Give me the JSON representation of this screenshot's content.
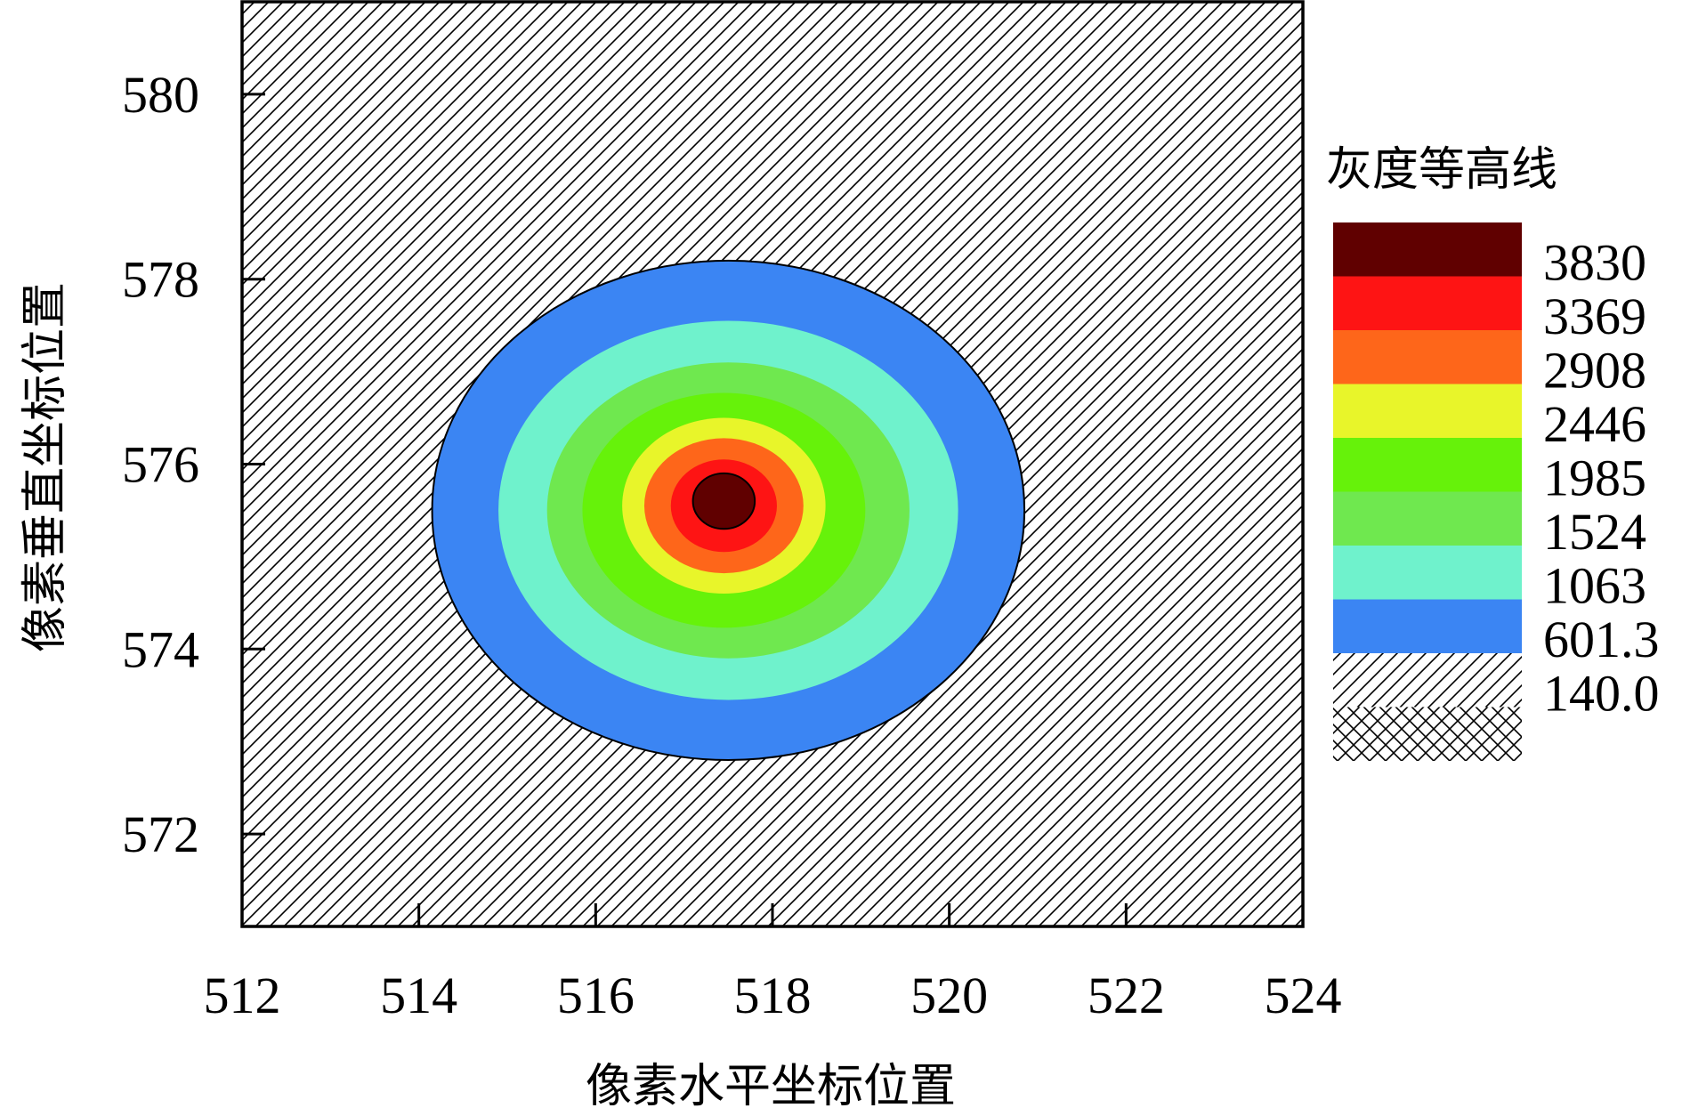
{
  "chart_data": {
    "type": "contour",
    "xlabel": "像素水平坐标位置",
    "ylabel": "像素垂直坐标位置",
    "xlim": [
      512,
      524
    ],
    "ylim": [
      571,
      581
    ],
    "x_ticks": [
      "512",
      "514",
      "516",
      "518",
      "520",
      "522",
      "524"
    ],
    "y_ticks": [
      "572",
      "574",
      "576",
      "578",
      "580"
    ],
    "grid": false,
    "legend_position": "right",
    "legend_title": "灰度等高线",
    "legend_labels": [
      "3830",
      "3369",
      "2908",
      "2446",
      "1985",
      "1524",
      "1063",
      "601.3",
      "140.0"
    ],
    "levels": [
      {
        "min": 140.0,
        "max": 601.3,
        "fill": "hatch-diagonal"
      },
      {
        "min": 601.3,
        "max": 1063,
        "color": "#3b85f3"
      },
      {
        "min": 1063,
        "max": 1524,
        "color": "#6ff2cc"
      },
      {
        "min": 1524,
        "max": 1985,
        "color": "#6fe84f"
      },
      {
        "min": 1985,
        "max": 2446,
        "color": "#66f20a"
      },
      {
        "min": 2446,
        "max": 2908,
        "color": "#e8f52a"
      },
      {
        "min": 2908,
        "max": 3369,
        "color": "#fe661a"
      },
      {
        "min": 3369,
        "max": 3830,
        "color": "#fe1414"
      },
      {
        "min": 3830,
        "max": null,
        "color": "#600000"
      }
    ],
    "legend_extra_swatch": {
      "label": "140.0",
      "fill": "hatch-cross"
    },
    "peak": {
      "x": 517.4,
      "y": 575.6
    },
    "contours": [
      {
        "cx": 517.5,
        "cy": 575.5,
        "rx": 3.35,
        "ry": 2.7,
        "color": "#3b85f3",
        "outlined": true
      },
      {
        "cx": 517.5,
        "cy": 575.5,
        "rx": 2.6,
        "ry": 2.05,
        "color": "#6ff2cc"
      },
      {
        "cx": 517.5,
        "cy": 575.5,
        "rx": 2.05,
        "ry": 1.6,
        "color": "#6fe84f"
      },
      {
        "cx": 517.45,
        "cy": 575.5,
        "rx": 1.6,
        "ry": 1.27,
        "color": "#66f20a"
      },
      {
        "cx": 517.45,
        "cy": 575.55,
        "rx": 1.15,
        "ry": 0.95,
        "color": "#e8f52a"
      },
      {
        "cx": 517.45,
        "cy": 575.55,
        "rx": 0.9,
        "ry": 0.73,
        "color": "#fe661a"
      },
      {
        "cx": 517.45,
        "cy": 575.55,
        "rx": 0.6,
        "ry": 0.5,
        "color": "#fe1414"
      },
      {
        "cx": 517.45,
        "cy": 575.6,
        "rx": 0.35,
        "ry": 0.3,
        "color": "#600000",
        "outlined": true
      }
    ]
  }
}
